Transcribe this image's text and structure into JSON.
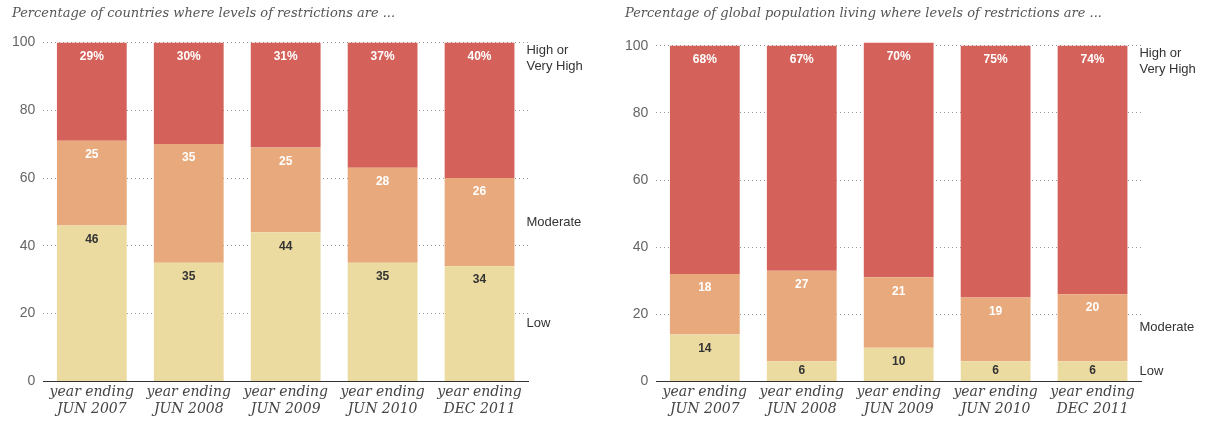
{
  "chart_data": [
    {
      "type": "bar",
      "title": "Percentage of countries where levels of restrictions are ...",
      "categories": [
        "year ending\nJUN 2007",
        "year ending\nJUN 2008",
        "year ending\nJUN 2009",
        "year ending\nJUN 2010",
        "year ending\nDEC 2011"
      ],
      "stacked": true,
      "ylim": [
        0,
        100
      ],
      "yticks": [
        0,
        20,
        40,
        60,
        80,
        100
      ],
      "grid": "y",
      "legend": "right",
      "series": [
        {
          "name": "Low",
          "color": "#ecdba1",
          "values": [
            46,
            35,
            44,
            35,
            34
          ],
          "value_labels": [
            "46",
            "35",
            "44",
            "35",
            "34"
          ]
        },
        {
          "name": "Moderate",
          "color": "#e8aa7d",
          "values": [
            25,
            35,
            25,
            28,
            26
          ],
          "value_labels": [
            "25",
            "35",
            "25",
            "28",
            "26"
          ]
        },
        {
          "name": "High or\nVery High",
          "color": "#d4625a",
          "values": [
            29,
            30,
            31,
            37,
            40
          ],
          "value_labels": [
            "29%",
            "30%",
            "31%",
            "37%",
            "40%"
          ]
        }
      ]
    },
    {
      "type": "bar",
      "title": "Percentage of global population living where levels of restrictions are ...",
      "categories": [
        "year ending\nJUN 2007",
        "year ending\nJUN 2008",
        "year ending\nJUN 2009",
        "year ending\nJUN 2010",
        "year ending\nDEC 2011"
      ],
      "stacked": true,
      "ylim": [
        0,
        101
      ],
      "yticks": [
        0,
        20,
        40,
        60,
        80,
        100
      ],
      "grid": "y",
      "legend": "right",
      "series": [
        {
          "name": "Low",
          "color": "#ecdba1",
          "values": [
            14,
            6,
            10,
            6,
            6
          ],
          "value_labels": [
            "14",
            "6",
            "10",
            "6",
            "6"
          ]
        },
        {
          "name": "Moderate",
          "color": "#e8aa7d",
          "values": [
            18,
            27,
            21,
            19,
            20
          ],
          "value_labels": [
            "18",
            "27",
            "21",
            "19",
            "20"
          ]
        },
        {
          "name": "High or\nVery High",
          "color": "#d4625a",
          "values": [
            68,
            67,
            70,
            75,
            74
          ],
          "value_labels": [
            "68%",
            "67%",
            "70%",
            "75%",
            "74%"
          ]
        }
      ]
    }
  ]
}
